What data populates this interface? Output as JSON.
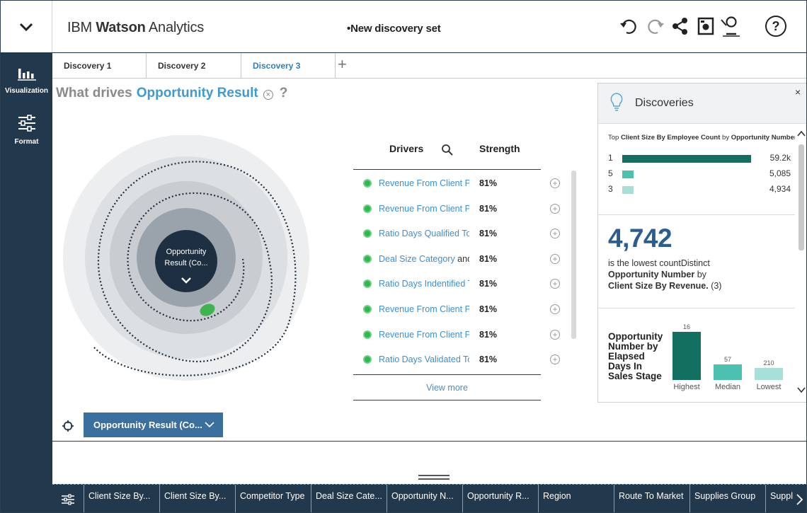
{
  "header": {
    "menu_icon": "chevron-down-icon",
    "brand_prefix": "IBM",
    "brand_bold": "Watson",
    "brand_suffix": "Analytics",
    "document_title": "New discovery set",
    "modified_marker": "•",
    "actions": [
      "undo-icon",
      "redo-icon",
      "share-icon",
      "save-icon",
      "collaborate-icon",
      "help-icon"
    ],
    "help_label": "?"
  },
  "sidebar": {
    "items": [
      {
        "label": "Visualization",
        "icon": "bar-chart-icon"
      },
      {
        "label": "Format",
        "icon": "sliders-icon"
      }
    ]
  },
  "tabs": {
    "items": [
      {
        "label": "Discovery 1",
        "active": false
      },
      {
        "label": "Discovery 2",
        "active": false
      },
      {
        "label": "Discovery 3",
        "active": true
      }
    ],
    "add_label": "+"
  },
  "question": {
    "prefix": "What drives",
    "target": "Opportunity Result",
    "clear_label": "×",
    "help_label": "?"
  },
  "spiral": {
    "center_label_line1": "Opportunity",
    "center_label_line2": "Result (Co...",
    "center_icon": "chevron-down-icon"
  },
  "drivers": {
    "header_name": "Drivers",
    "header_strength": "Strength",
    "search_icon": "search-icon",
    "rows": [
      {
        "name": "Revenue From Client Pa",
        "tail": "",
        "strength": "81%"
      },
      {
        "name": "Revenue From Client Pa",
        "tail": "",
        "strength": "81%"
      },
      {
        "name": "Ratio Days Qualified To",
        "tail": "",
        "strength": "81%"
      },
      {
        "name": "Deal Size Category",
        "tail": " and",
        "strength": "81%"
      },
      {
        "name": "Ratio Days Indentified T",
        "tail": "",
        "strength": "81%"
      },
      {
        "name": "Revenue From Client Pa",
        "tail": "",
        "strength": "81%"
      },
      {
        "name": "Revenue From Client Pa",
        "tail": "",
        "strength": "81%"
      },
      {
        "name": "Ratio Days Validated To",
        "tail": "",
        "strength": "81%"
      }
    ],
    "view_more": "View more"
  },
  "target_selector": {
    "label": "Opportunity Result (Co...",
    "icon": "crosshair-icon"
  },
  "discoveries": {
    "title": "Discoveries",
    "icon": "lightbulb-icon",
    "close_label": "×",
    "card1": {
      "title_pre": "Top ",
      "title_field": "Client Size By Employee Count",
      "title_by": " by ",
      "title_measure": "Opportunity Number",
      "rows": [
        {
          "category": "1",
          "value_label": "59.2k",
          "value": 59200,
          "color": "#136f60"
        },
        {
          "category": "5",
          "value_label": "5,085",
          "value": 5085,
          "color": "#4dc1b0"
        },
        {
          "category": "3",
          "value_label": "4,934",
          "value": 4934,
          "color": "#a6dfd5"
        }
      ]
    },
    "card2": {
      "number": "4,742",
      "line1": "is the lowest countDistinct",
      "line2": "Opportunity Number",
      "line2_tail": " by",
      "line3": "Client Size By Revenue.",
      "line3_tail": " (3)"
    },
    "card3": {
      "title": "Opportunity Number by Elapsed Days In Sales Stage",
      "chart_data": {
        "type": "bar",
        "categories": [
          "Highest",
          "Median",
          "Lowest"
        ],
        "values": [
          16,
          57,
          210
        ],
        "value_labels": [
          "16",
          "57",
          "210"
        ],
        "colors": [
          "#136f60",
          "#4dc1b0",
          "#a6dfd5"
        ]
      }
    }
  },
  "bottom_bar": {
    "settings_icon": "sliders-icon",
    "fields": [
      "Client Size By...",
      "Client Size By...",
      "Competitor Type",
      "Deal Size Cate...",
      "Opportunity N...",
      "Opportunity R...",
      "Region",
      "Route To Market",
      "Supplies Group",
      "Suppl"
    ],
    "next_icon": "chevron-right-icon"
  }
}
